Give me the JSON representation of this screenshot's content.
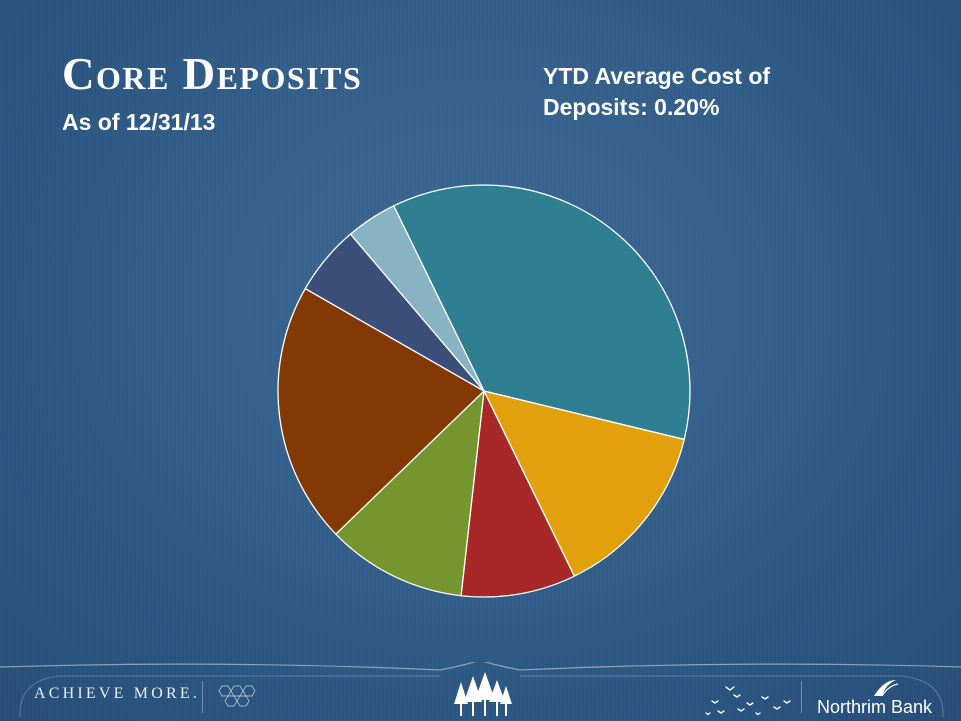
{
  "slide": {
    "title": "Core Deposits",
    "subtitle": "As of 12/31/13",
    "cost_line1": "YTD Average Cost of",
    "cost_line2": "Deposits:  0.20%"
  },
  "footer": {
    "tagline": "ACHIEVE MORE.",
    "bank_name": "Northrim Bank"
  },
  "chart_data": {
    "type": "pie",
    "start_angle_deg": -26,
    "slices": [
      {
        "value": 36.0,
        "color": "#2e7f91"
      },
      {
        "value": 14.0,
        "color": "#e2a10c"
      },
      {
        "value": 9.0,
        "color": "#a82828"
      },
      {
        "value": 11.0,
        "color": "#75952e"
      },
      {
        "value": 20.5,
        "color": "#833903"
      },
      {
        "value": 5.5,
        "color": "#3c4f7a"
      },
      {
        "value": 4.0,
        "color": "#88b3c3"
      }
    ]
  }
}
